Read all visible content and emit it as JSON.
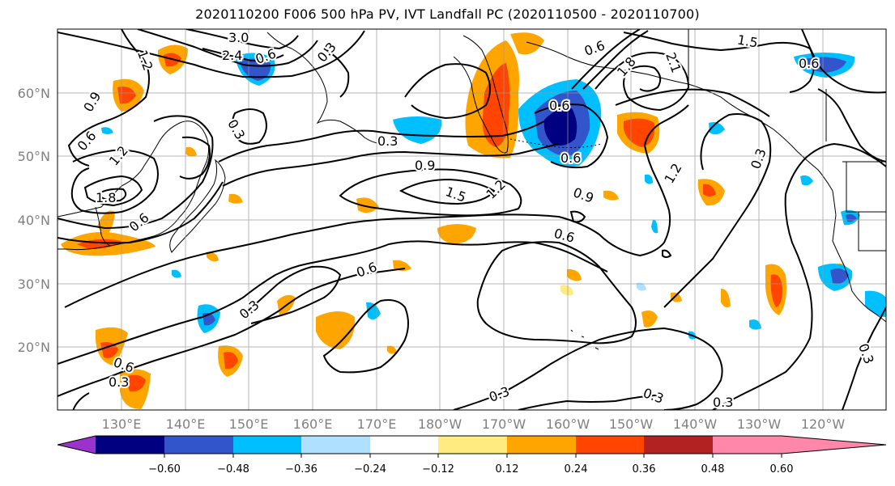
{
  "title": "2020110200 F006 500 hPa PV, IVT Landfall PC (2020110500 - 2020110700)",
  "lat_labels": [
    "60°N",
    "50°N",
    "40°N",
    "30°N",
    "20°N"
  ],
  "lon_labels": [
    "130°E",
    "140°E",
    "150°E",
    "160°E",
    "170°E",
    "180°W",
    "170°W",
    "160°W",
    "150°W",
    "140°W",
    "130°W",
    "120°W"
  ],
  "colorbar": {
    "ticks": [
      "−0.60",
      "−0.48",
      "−0.36",
      "−0.24",
      "−0.12",
      "0.12",
      "0.24",
      "0.36",
      "0.48",
      "0.60"
    ],
    "colors": [
      "#9933cc",
      "#000080",
      "#3355cc",
      "#00bfff",
      "#b0e0ff",
      "#ffffff",
      "#ffeb80",
      "#ffa500",
      "#ff4500",
      "#b22222",
      "#ff88aa"
    ]
  },
  "contour_labels": [
    "3.0",
    "2.4",
    "1.2",
    "0.9",
    "0.6",
    "0.3",
    "1.8",
    "1.2",
    "0.6",
    "0.3",
    "0.9",
    "1.5",
    "1.2",
    "0.3",
    "0.6",
    "0.9",
    "0.6",
    "0.6",
    "1.5",
    "0.6",
    "1.8",
    "2.1",
    "1.2",
    "0.6",
    "0.3",
    "0.6",
    "0.6",
    "0.3",
    "0.3",
    "0.3",
    "0.6",
    "0.3",
    "0.3",
    "0.3"
  ]
}
